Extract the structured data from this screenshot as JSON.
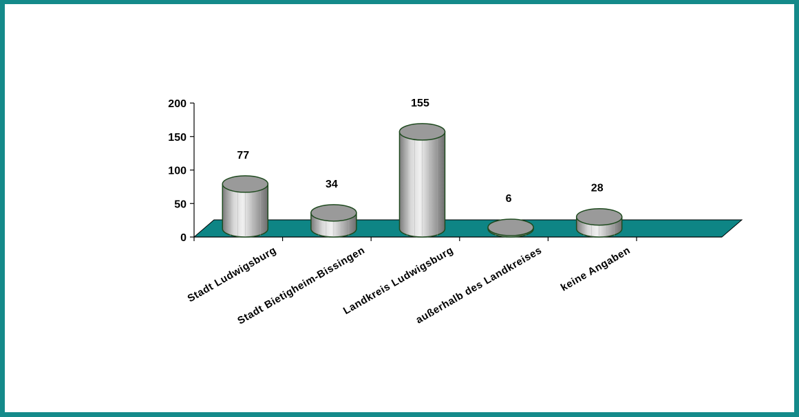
{
  "colors": {
    "frame": "#148a8a",
    "floor": "#0e8585",
    "cylinder_light": "#e8e8e8",
    "cylinder_dark": "#808080",
    "cylinder_top": "#9a9a9a",
    "cylinder_outline": "#1f4a1f"
  },
  "chart_data": {
    "type": "bar",
    "style": "3d-cylinder",
    "categories": [
      "Stadt Ludwigsburg",
      "Stadt Bietigheim-Bissingen",
      "Landkreis Ludwigsburg",
      "außerhalb des Landkreises",
      "keine Angaben"
    ],
    "values": [
      77,
      34,
      155,
      6,
      28
    ],
    "data_labels": [
      "77",
      "34",
      "155",
      "6",
      "28"
    ],
    "y_ticks": [
      "0",
      "50",
      "100",
      "150",
      "200"
    ],
    "ylim": [
      0,
      200
    ],
    "title": "",
    "xlabel": "",
    "ylabel": "",
    "grid": false,
    "legend": "none"
  }
}
